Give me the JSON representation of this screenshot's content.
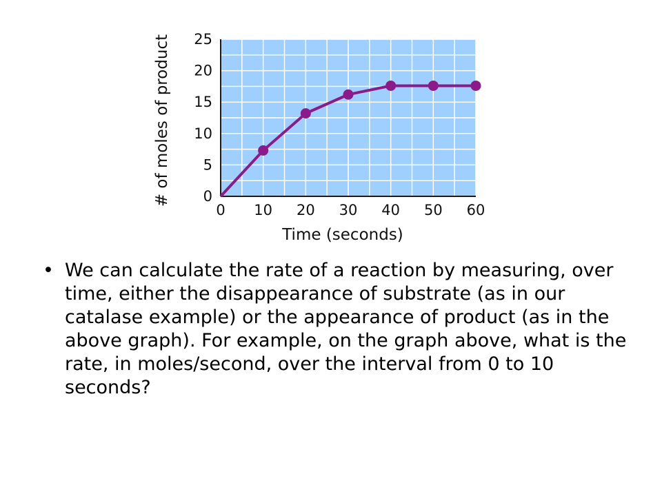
{
  "chart_data": {
    "type": "line",
    "title": "",
    "xlabel": "Time (seconds)",
    "ylabel": "# of moles of product",
    "x": [
      0,
      10,
      20,
      30,
      40,
      50,
      60
    ],
    "series": [
      {
        "values": [
          0,
          7.3,
          13.2,
          16.2,
          17.6,
          17.6,
          17.6
        ],
        "color": "#8B1A8B"
      }
    ],
    "xlim": [
      0,
      60
    ],
    "ylim": [
      0,
      25
    ],
    "xticks": [
      "0",
      "10",
      "20",
      "30",
      "40",
      "50",
      "60"
    ],
    "yticks": [
      "0",
      "5",
      "10",
      "15",
      "20",
      "25"
    ],
    "grid": true,
    "plot_background": "#9ECFFF",
    "grid_color": "#ffffff"
  },
  "bullet": {
    "symbol": "•",
    "text": "We can calculate the rate of a reaction by measuring, over time, either the disappearance of substrate (as in our catalase example) or the appearance of product (as in the above graph). For example, on the graph above, what is the rate, in moles/second, over the interval from 0 to 10 seconds?"
  }
}
